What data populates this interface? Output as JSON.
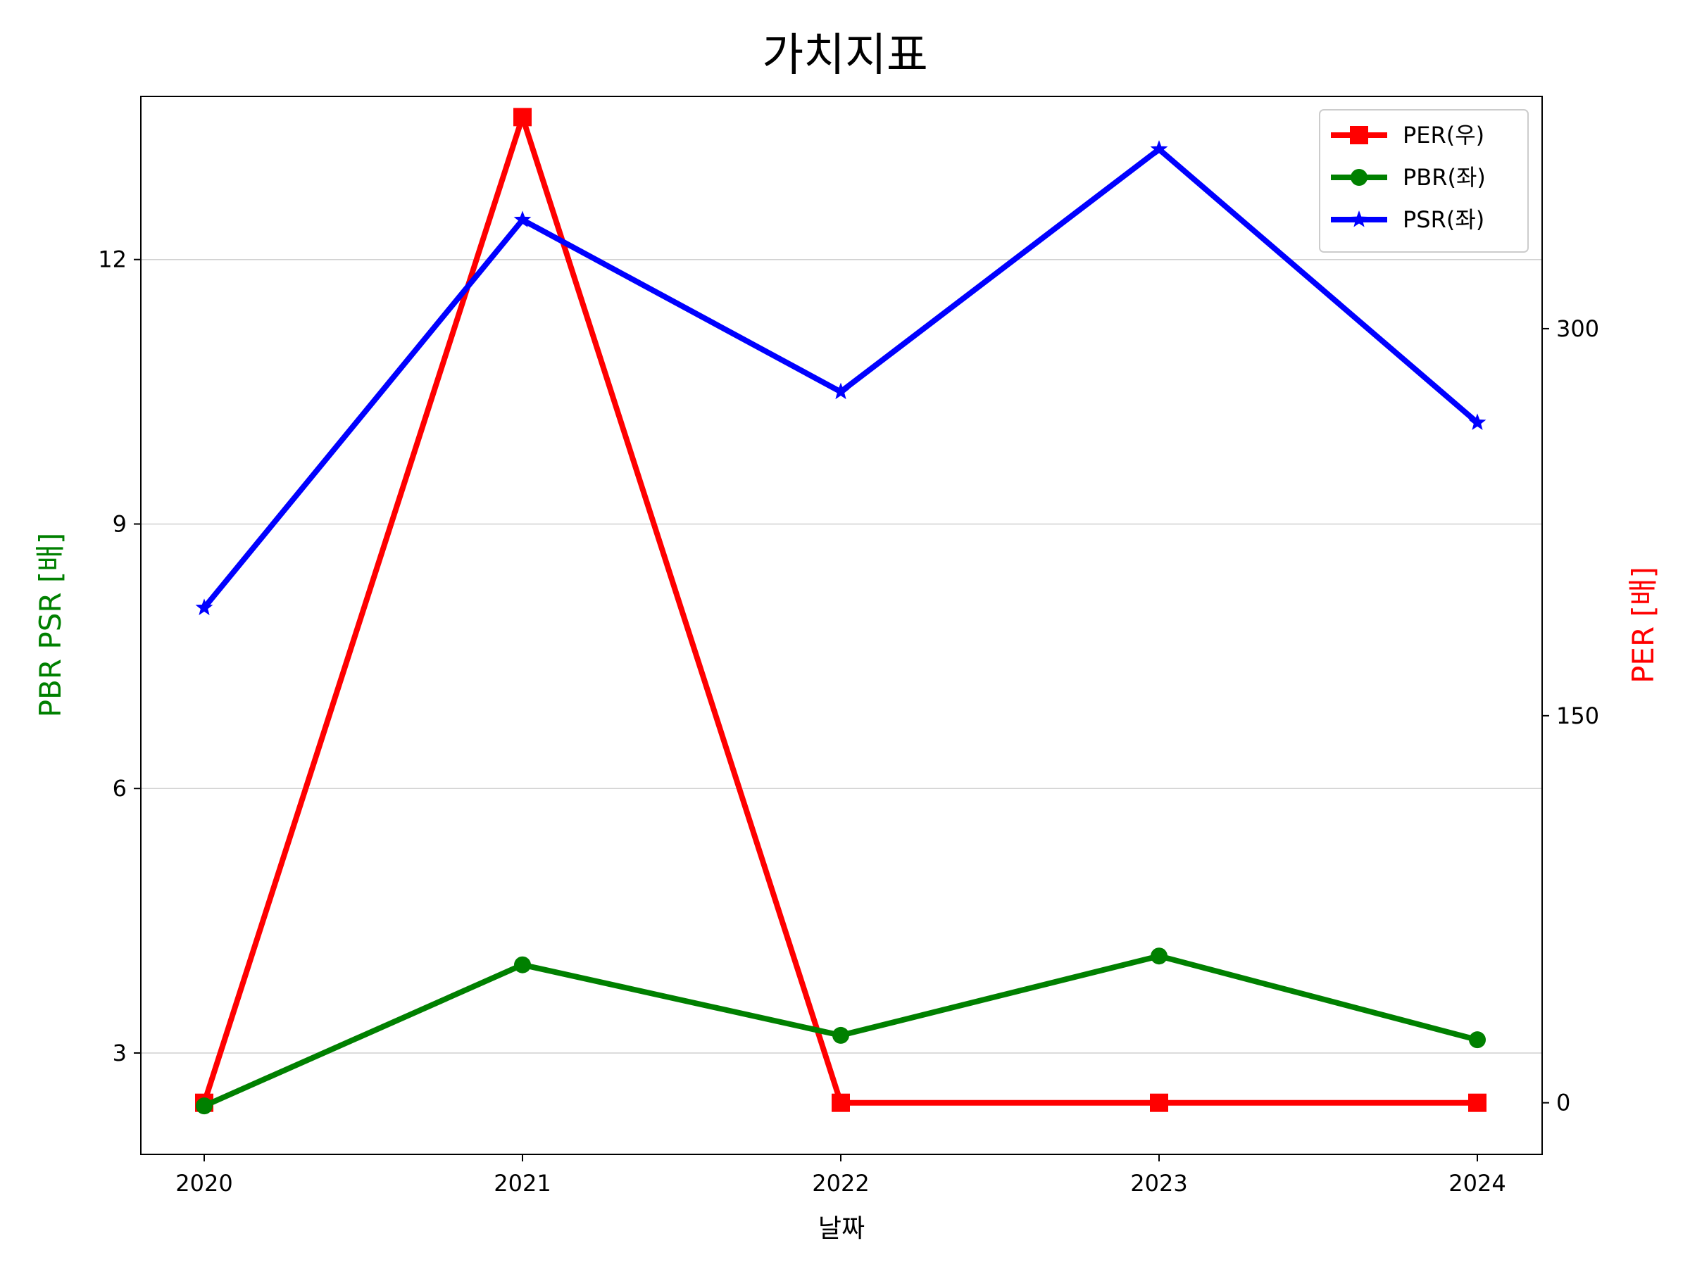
{
  "chart_data": {
    "type": "line",
    "title": "가치지표",
    "xlabel": "날짜",
    "ylabel_left": "PBR PSR [배]",
    "ylabel_right": "PER [배]",
    "categories": [
      "2020",
      "2021",
      "2022",
      "2023",
      "2024"
    ],
    "left_axis": {
      "ticks": [
        "3",
        "6",
        "9",
        "12"
      ],
      "ylim": [
        1.85,
        13.85
      ],
      "grid": true
    },
    "right_axis": {
      "ticks": [
        "0",
        "150",
        "300"
      ],
      "ylim": [
        -20,
        390
      ]
    },
    "series": [
      {
        "name": "PER(우)",
        "axis": "right",
        "color": "#ff0000",
        "marker": "square",
        "values": [
          0,
          382,
          0,
          0,
          0
        ]
      },
      {
        "name": "PBR(좌)",
        "axis": "left",
        "color": "#008000",
        "marker": "circle",
        "values": [
          2.4,
          4.0,
          3.2,
          4.1,
          3.15
        ]
      },
      {
        "name": "PSR(좌)",
        "axis": "left",
        "color": "#0000ff",
        "marker": "star",
        "values": [
          8.05,
          12.45,
          10.5,
          13.25,
          10.15
        ]
      }
    ],
    "legend": {
      "position": "top-right"
    }
  }
}
